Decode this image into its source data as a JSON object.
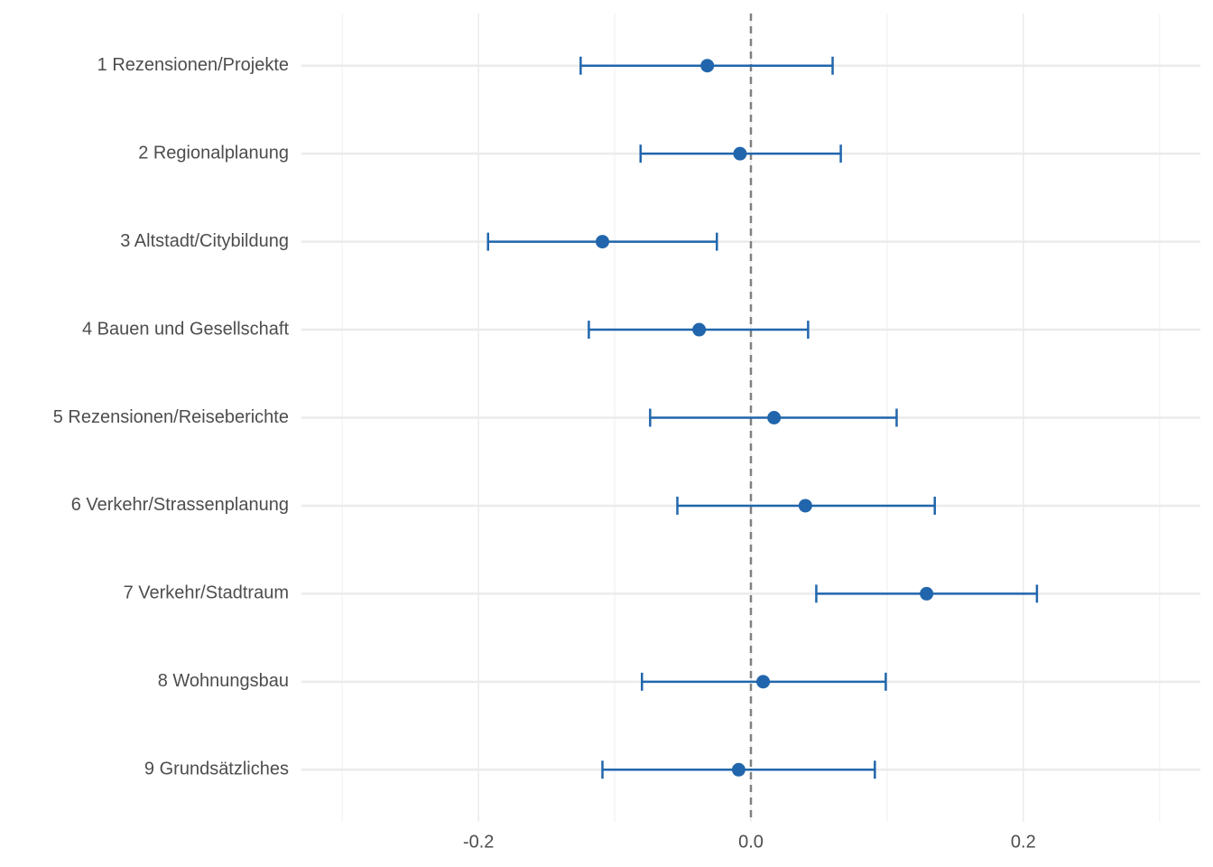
{
  "chart_data": {
    "type": "errorbar",
    "categories": [
      "1 Rezensionen/Projekte",
      "2 Regionalplanung",
      "3 Altstadt/Citybildung",
      "4 Bauen und Gesellschaft",
      "5 Rezensionen/Reiseberichte",
      "6 Verkehr/Strassenplanung",
      "7 Verkehr/Stadtraum",
      "8 Wohnungsbau",
      "9 Grundsätzliches"
    ],
    "values": [
      -0.032,
      -0.008,
      -0.109,
      -0.038,
      0.017,
      0.04,
      0.129,
      0.009,
      -0.009
    ],
    "lower": [
      -0.125,
      -0.081,
      -0.193,
      -0.119,
      -0.074,
      -0.054,
      0.048,
      -0.08,
      -0.109
    ],
    "upper": [
      0.06,
      0.066,
      -0.025,
      0.042,
      0.107,
      0.135,
      0.21,
      0.099,
      0.091
    ],
    "color": "#2166ac",
    "xlim": [
      -0.33,
      0.33
    ],
    "xticks": [
      -0.2,
      {
        "value": 0,
        "label": "0.0"
      },
      0.2
    ],
    "minor_xticks": [
      -0.3,
      -0.1,
      0.1,
      0.3
    ],
    "reference_line": 0,
    "grid": true
  }
}
